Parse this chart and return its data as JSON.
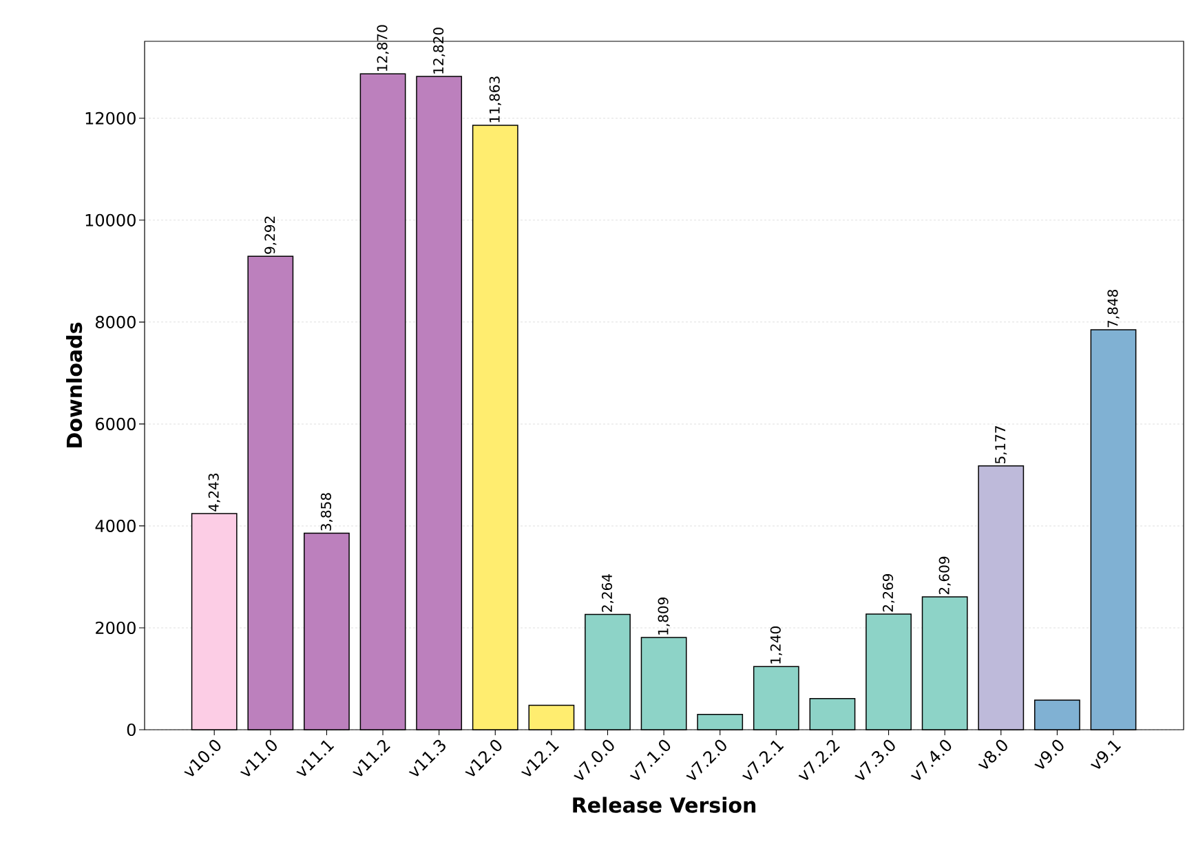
{
  "chart_data": {
    "type": "bar",
    "xlabel": "Release Version",
    "ylabel": "Downloads",
    "categories": [
      "v10.0",
      "v11.0",
      "v11.1",
      "v11.2",
      "v11.3",
      "v12.0",
      "v12.1",
      "v7.0.0",
      "v7.1.0",
      "v7.2.0",
      "v7.2.1",
      "v7.2.2",
      "v7.3.0",
      "v7.4.0",
      "v8.0",
      "v9.0",
      "v9.1"
    ],
    "values": [
      4243,
      9292,
      3858,
      12870,
      12820,
      11863,
      480,
      2264,
      1809,
      300,
      1240,
      610,
      2269,
      2609,
      5177,
      580,
      7848
    ],
    "colors": [
      "#fccde5",
      "#bc80bd",
      "#bc80bd",
      "#bc80bd",
      "#bc80bd",
      "#ffed6f",
      "#ffed6f",
      "#8dd3c7",
      "#8dd3c7",
      "#8dd3c7",
      "#8dd3c7",
      "#8dd3c7",
      "#8dd3c7",
      "#8dd3c7",
      "#bebada",
      "#80b1d3",
      "#80b1d3"
    ],
    "value_labels": [
      "4,243",
      "9,292",
      "3,858",
      "12,870",
      "12,820",
      "11,863",
      null,
      "2,264",
      "1,809",
      null,
      "1,240",
      null,
      "2,269",
      "2,609",
      "5,177",
      null,
      "7,848"
    ],
    "ylim": [
      0,
      13510
    ],
    "yticks": [
      0,
      2000,
      4000,
      6000,
      8000,
      10000,
      12000
    ],
    "grid": "y"
  }
}
